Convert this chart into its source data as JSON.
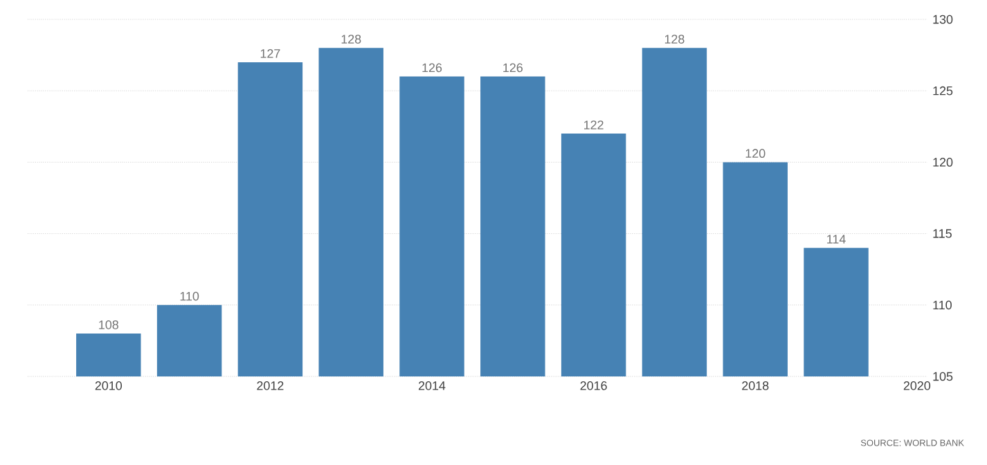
{
  "chart_data": {
    "type": "bar",
    "x": [
      2010,
      2011,
      2012,
      2013,
      2014,
      2015,
      2016,
      2017,
      2018,
      2019
    ],
    "values": [
      108,
      110,
      127,
      128,
      126,
      126,
      122,
      128,
      120,
      114
    ],
    "color": "#4682b4",
    "data_labels": true,
    "grid": "y",
    "xlim": [
      2009.0,
      2020.13
    ],
    "xticks": [
      2010,
      2012,
      2014,
      2016,
      2018,
      2020
    ],
    "ylim": [
      105,
      130
    ],
    "yticks": [
      105,
      110,
      115,
      120,
      125,
      130
    ],
    "annotations": [
      "SOURCE: WORLD BANK"
    ]
  }
}
